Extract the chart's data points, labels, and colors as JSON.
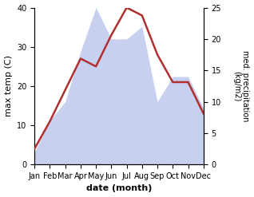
{
  "months": [
    "Jan",
    "Feb",
    "Mar",
    "Apr",
    "May",
    "Jun",
    "Jul",
    "Aug",
    "Sep",
    "Oct",
    "Nov",
    "Dec"
  ],
  "temp_max": [
    4,
    11,
    19,
    27,
    25,
    33,
    40,
    38,
    28,
    21,
    21,
    13
  ],
  "precip": [
    2,
    7,
    10,
    18,
    25,
    20,
    20,
    22,
    10,
    14,
    14,
    9
  ],
  "temp_color": "#b03030",
  "precip_fill_color": "#c8d0f0",
  "precip_edge_color": "#a0a8e0",
  "left_label": "max temp (C)",
  "right_label": "med. precipitation\n(kg/m2)",
  "xlabel": "date (month)",
  "ylim_left": [
    0,
    40
  ],
  "ylim_right": [
    0,
    25
  ],
  "yticks_left": [
    0,
    10,
    20,
    30,
    40
  ],
  "yticks_right": [
    0,
    5,
    10,
    15,
    20,
    25
  ],
  "bg_color": "#ffffff"
}
